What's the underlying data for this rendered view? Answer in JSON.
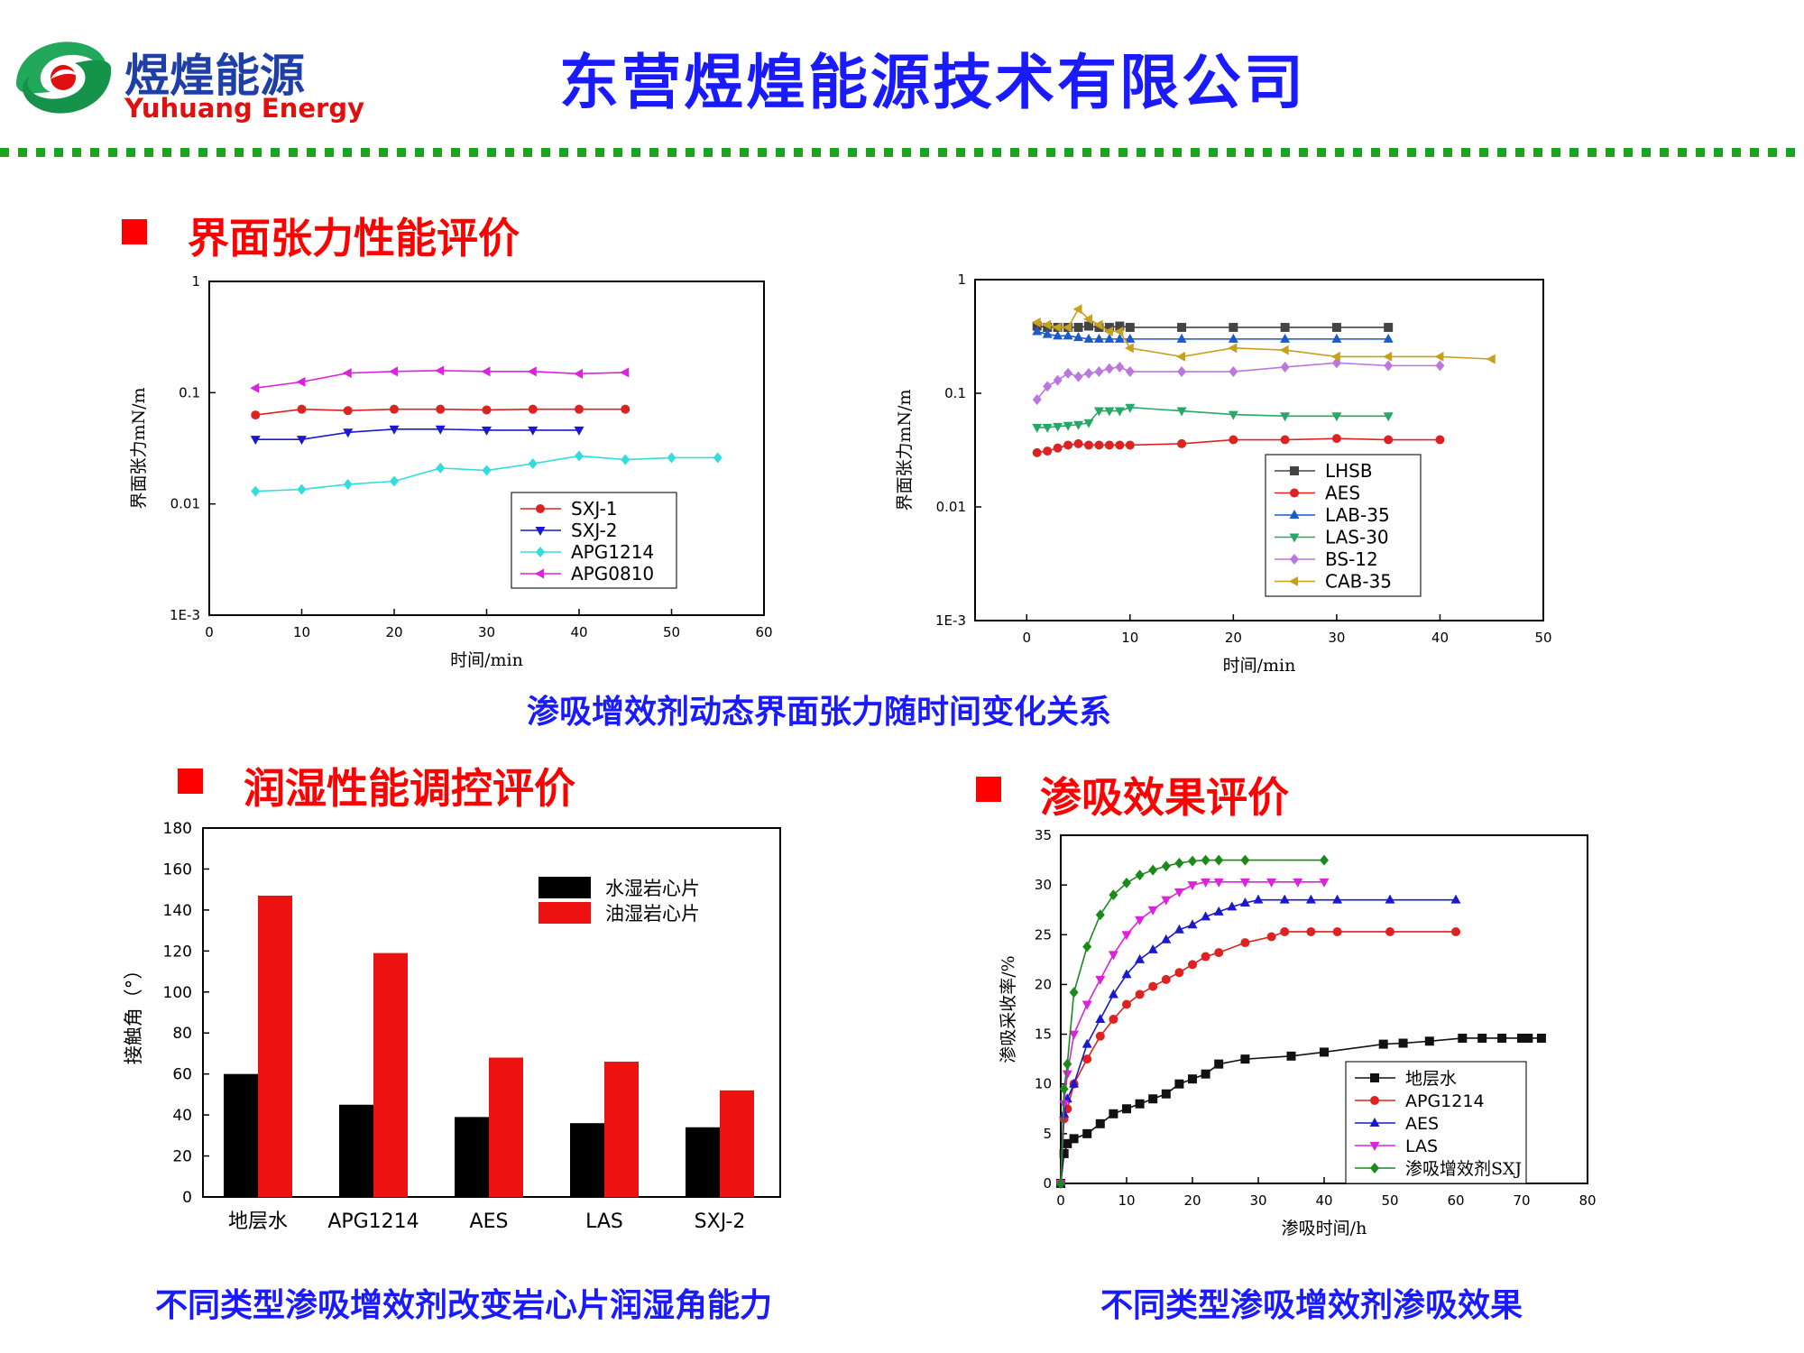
{
  "header": {
    "logo_cn": "煜煌能源",
    "logo_en": "Yuhuang Energy",
    "company": "东营煜煌能源技术有限公司"
  },
  "sections": {
    "ift": "界面张力性能评价",
    "wetting": "润湿性能调控评价",
    "imbibition": "渗吸效果评价"
  },
  "captions": {
    "ift": "渗吸增效剂动态界面张力随时间变化关系",
    "wetting": "不同类型渗吸增效剂改变岩心片润湿角能力",
    "imbibition": "不同类型渗吸增效剂渗吸效果"
  },
  "chart_data": [
    {
      "type": "line",
      "xlabel": "时间/min",
      "ylabel": "界面张力mN/m",
      "xlim": [
        0,
        60
      ],
      "ylim": [
        0.001,
        1
      ],
      "yscale": "log",
      "xticks": [
        "0",
        "10",
        "20",
        "30",
        "40",
        "50",
        "60"
      ],
      "yticks": [
        "1E-3",
        "0.01",
        "0.1",
        "1"
      ],
      "legend_position": "bottom-right",
      "series": [
        {
          "name": "SXJ-1",
          "color": "#dd2222",
          "marker": "circle",
          "x": [
            5,
            10,
            15,
            20,
            25,
            30,
            35,
            40,
            45
          ],
          "y": [
            0.063,
            0.071,
            0.069,
            0.071,
            0.071,
            0.07,
            0.071,
            0.071,
            0.071
          ]
        },
        {
          "name": "SXJ-2",
          "color": "#1a1acc",
          "marker": "triangle-down",
          "x": [
            5,
            10,
            15,
            20,
            25,
            30,
            35,
            40
          ],
          "y": [
            0.038,
            0.038,
            0.044,
            0.047,
            0.047,
            0.046,
            0.046,
            0.046
          ]
        },
        {
          "name": "APG1214",
          "color": "#33dddd",
          "marker": "diamond",
          "x": [
            5,
            10,
            15,
            20,
            25,
            30,
            35,
            40,
            45,
            50,
            55
          ],
          "y": [
            0.013,
            0.0135,
            0.015,
            0.016,
            0.021,
            0.02,
            0.023,
            0.027,
            0.025,
            0.026,
            0.026
          ]
        },
        {
          "name": "APG0810",
          "color": "#dd22dd",
          "marker": "triangle-left",
          "x": [
            5,
            10,
            15,
            20,
            25,
            30,
            35,
            40,
            45
          ],
          "y": [
            0.11,
            0.125,
            0.15,
            0.155,
            0.158,
            0.155,
            0.155,
            0.148,
            0.152
          ]
        }
      ]
    },
    {
      "type": "line",
      "xlabel": "时间/min",
      "ylabel": "界面张力mN/m",
      "xlim": [
        -5,
        50
      ],
      "ylim": [
        0.001,
        1
      ],
      "yscale": "log",
      "xticks": [
        "0",
        "10",
        "20",
        "30",
        "40",
        "50"
      ],
      "yticks": [
        "1E-3",
        "0.01",
        "0.1",
        "1"
      ],
      "legend_position": "bottom-right",
      "series": [
        {
          "name": "LHSB",
          "color": "#444444",
          "marker": "square",
          "x": [
            1,
            2,
            3,
            4,
            5,
            6,
            7,
            8,
            9,
            10,
            15,
            20,
            25,
            30,
            35
          ],
          "y": [
            0.39,
            0.38,
            0.38,
            0.38,
            0.38,
            0.39,
            0.38,
            0.38,
            0.39,
            0.38,
            0.38,
            0.38,
            0.38,
            0.38,
            0.38
          ]
        },
        {
          "name": "AES",
          "color": "#dd2222",
          "marker": "circle",
          "x": [
            1,
            2,
            3,
            4,
            5,
            6,
            7,
            8,
            9,
            10,
            15,
            20,
            25,
            30,
            35,
            40
          ],
          "y": [
            0.03,
            0.031,
            0.033,
            0.035,
            0.036,
            0.035,
            0.035,
            0.035,
            0.035,
            0.035,
            0.036,
            0.039,
            0.039,
            0.04,
            0.039,
            0.039
          ]
        },
        {
          "name": "LAB-35",
          "color": "#1a5acc",
          "marker": "triangle-up",
          "x": [
            1,
            2,
            3,
            4,
            5,
            6,
            7,
            8,
            9,
            10,
            15,
            20,
            25,
            30,
            35
          ],
          "y": [
            0.35,
            0.33,
            0.32,
            0.32,
            0.31,
            0.3,
            0.3,
            0.3,
            0.3,
            0.3,
            0.3,
            0.3,
            0.3,
            0.3,
            0.3
          ]
        },
        {
          "name": "LAS-30",
          "color": "#22aa66",
          "marker": "triangle-down",
          "x": [
            1,
            2,
            3,
            4,
            5,
            6,
            7,
            8,
            9,
            10,
            15,
            20,
            25,
            30,
            35
          ],
          "y": [
            0.05,
            0.05,
            0.051,
            0.052,
            0.053,
            0.055,
            0.07,
            0.07,
            0.07,
            0.075,
            0.07,
            0.065,
            0.063,
            0.063,
            0.063
          ]
        },
        {
          "name": "BS-12",
          "color": "#bb77dd",
          "marker": "diamond",
          "x": [
            1,
            2,
            3,
            4,
            5,
            6,
            7,
            8,
            9,
            10,
            15,
            20,
            25,
            30,
            35,
            40
          ],
          "y": [
            0.088,
            0.115,
            0.13,
            0.15,
            0.14,
            0.15,
            0.155,
            0.165,
            0.17,
            0.155,
            0.155,
            0.155,
            0.17,
            0.185,
            0.175,
            0.175
          ]
        },
        {
          "name": "CAB-35",
          "color": "#c8a020",
          "marker": "triangle-left",
          "x": [
            1,
            2,
            3,
            4,
            5,
            6,
            7,
            8,
            9,
            10,
            15,
            20,
            25,
            30,
            35,
            40,
            45
          ],
          "y": [
            0.42,
            0.4,
            0.38,
            0.38,
            0.55,
            0.45,
            0.4,
            0.35,
            0.35,
            0.25,
            0.21,
            0.25,
            0.24,
            0.21,
            0.21,
            0.21,
            0.2
          ]
        }
      ]
    },
    {
      "type": "bar",
      "ylabel": "接触角（°）",
      "ylim": [
        0,
        180
      ],
      "yticks": [
        "0",
        "20",
        "40",
        "60",
        "80",
        "100",
        "120",
        "140",
        "160",
        "180"
      ],
      "categories": [
        "地层水",
        "APG1214",
        "AES",
        "LAS",
        "SXJ-2"
      ],
      "legend_position": "top-right",
      "series": [
        {
          "name": "水湿岩心片",
          "color": "#000000",
          "values": [
            60,
            45,
            39,
            36,
            34
          ]
        },
        {
          "name": "油湿岩心片",
          "color": "#ee1111",
          "values": [
            147,
            119,
            68,
            66,
            52
          ]
        }
      ]
    },
    {
      "type": "line",
      "xlabel": "渗吸时间/h",
      "ylabel": "渗吸采收率/%",
      "xlim": [
        0,
        80
      ],
      "ylim": [
        0,
        35
      ],
      "xticks": [
        "0",
        "10",
        "20",
        "30",
        "40",
        "50",
        "60",
        "70",
        "80"
      ],
      "yticks": [
        "0",
        "5",
        "10",
        "15",
        "20",
        "25",
        "30",
        "35"
      ],
      "legend_position": "bottom-right",
      "series": [
        {
          "name": "地层水",
          "color": "#111111",
          "marker": "square",
          "x": [
            0,
            0.5,
            1,
            2,
            4,
            6,
            8,
            10,
            12,
            14,
            16,
            18,
            20,
            22,
            24,
            28,
            35,
            40,
            49,
            52,
            56,
            61,
            64,
            67,
            70,
            71,
            73
          ],
          "y": [
            0,
            3,
            4,
            4.5,
            5,
            6,
            7,
            7.5,
            8,
            8.5,
            9,
            10,
            10.5,
            11,
            12,
            12.5,
            12.8,
            13.2,
            14,
            14.1,
            14.3,
            14.6,
            14.6,
            14.6,
            14.6,
            14.6,
            14.6
          ]
        },
        {
          "name": "APG1214",
          "color": "#dd2222",
          "marker": "circle",
          "x": [
            0,
            0.5,
            1,
            2,
            4,
            6,
            8,
            10,
            12,
            14,
            16,
            18,
            20,
            22,
            24,
            28,
            32,
            34,
            38,
            42,
            50,
            60
          ],
          "y": [
            0,
            6.5,
            7.5,
            10,
            12.5,
            14.8,
            16.5,
            18,
            19,
            19.8,
            20.5,
            21.2,
            22,
            22.8,
            23.2,
            24.2,
            24.8,
            25.3,
            25.3,
            25.3,
            25.3,
            25.3
          ]
        },
        {
          "name": "AES",
          "color": "#1a1acc",
          "marker": "triangle-up",
          "x": [
            0,
            0.5,
            1,
            2,
            4,
            6,
            8,
            10,
            12,
            14,
            16,
            18,
            20,
            22,
            24,
            26,
            28,
            30,
            34,
            38,
            42,
            50,
            60
          ],
          "y": [
            0,
            7,
            8.5,
            10,
            14,
            16.5,
            19,
            21,
            22.5,
            23.5,
            24.5,
            25.5,
            26,
            26.8,
            27.3,
            27.8,
            28.2,
            28.5,
            28.5,
            28.5,
            28.5,
            28.5,
            28.5
          ]
        },
        {
          "name": "LAS",
          "color": "#dd22dd",
          "marker": "triangle-down",
          "x": [
            0,
            0.5,
            1,
            2,
            4,
            6,
            8,
            10,
            12,
            14,
            16,
            18,
            20,
            22,
            24,
            28,
            32,
            36,
            40
          ],
          "y": [
            0,
            8,
            11,
            15,
            18,
            20.5,
            23,
            25,
            26.5,
            27.5,
            28.5,
            29.3,
            30,
            30.3,
            30.3,
            30.3,
            30.3,
            30.3,
            30.3
          ]
        },
        {
          "name": "渗吸增效剂SXJ",
          "color": "#1a8a1a",
          "marker": "diamond",
          "x": [
            0,
            0.5,
            1,
            2,
            4,
            6,
            8,
            10,
            12,
            14,
            16,
            18,
            20,
            22,
            24,
            28,
            40
          ],
          "y": [
            0,
            9.5,
            12,
            19.2,
            23.8,
            27,
            29,
            30.2,
            31,
            31.5,
            31.9,
            32.2,
            32.4,
            32.5,
            32.5,
            32.5,
            32.5
          ]
        }
      ]
    }
  ]
}
